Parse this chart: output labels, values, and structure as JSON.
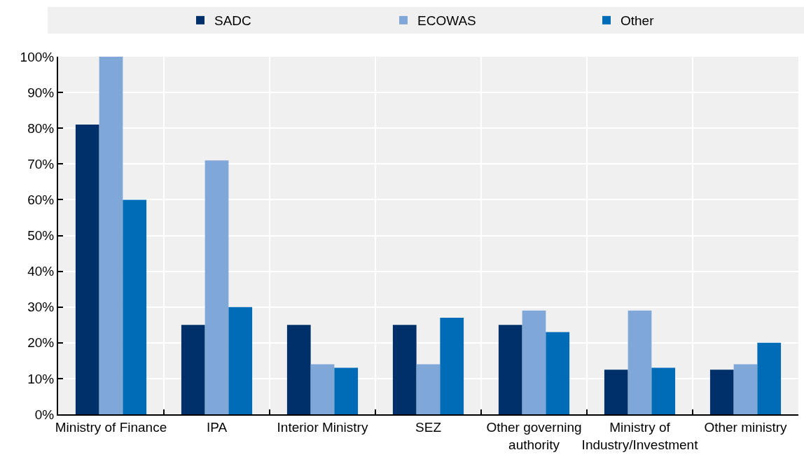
{
  "chart_data": {
    "type": "bar",
    "categories": [
      "Ministry of Finance",
      "IPA",
      "Interior Ministry",
      "SEZ",
      "Other governing authority",
      "Ministry of Industry/Investment",
      "Other ministry"
    ],
    "series": [
      {
        "name": "SADC",
        "color": "#003069",
        "values": [
          81,
          25,
          25,
          25,
          25,
          12.5,
          12.5
        ]
      },
      {
        "name": "ECOWAS",
        "color": "#7fa7d8",
        "values": [
          100,
          71,
          14,
          14,
          29,
          29,
          14
        ]
      },
      {
        "name": "Other",
        "color": "#006cb7",
        "values": [
          60,
          30,
          13,
          27,
          23,
          13,
          20
        ]
      }
    ],
    "ylim": [
      0,
      100
    ],
    "yticks": [
      {
        "value": 0,
        "label": "0%"
      },
      {
        "value": 10,
        "label": "10%"
      },
      {
        "value": 20,
        "label": "20%"
      },
      {
        "value": 30,
        "label": "30%"
      },
      {
        "value": 40,
        "label": "40%"
      },
      {
        "value": 50,
        "label": "50%"
      },
      {
        "value": 60,
        "label": "60%"
      },
      {
        "value": 70,
        "label": "70%"
      },
      {
        "value": 80,
        "label": "80%"
      },
      {
        "value": 90,
        "label": "90%"
      },
      {
        "value": 100,
        "label": "100%"
      }
    ],
    "grid": true,
    "legend": "top"
  }
}
